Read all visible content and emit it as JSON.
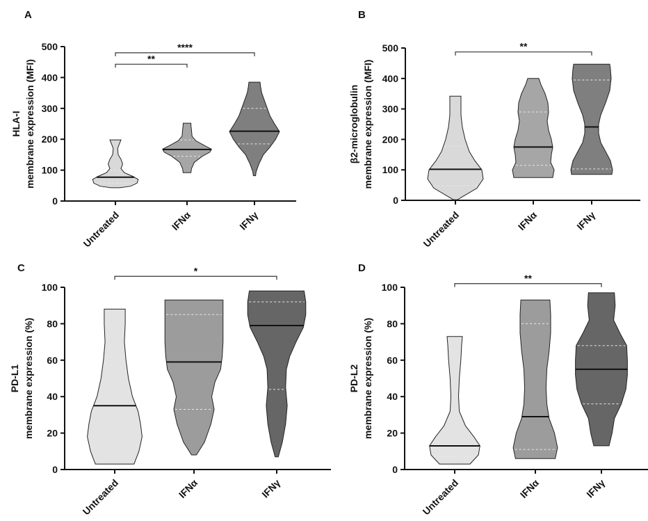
{
  "chart_data": [
    {
      "type": "violin",
      "panel": "A",
      "ylabel_lines": [
        "HLA-I",
        "membrane expression (MFI)"
      ],
      "ylim": [
        0,
        500
      ],
      "yticks": [
        0,
        100,
        200,
        300,
        400,
        500
      ],
      "categories": [
        "Untreated",
        "IFNα",
        "IFNγ"
      ],
      "colors": [
        "#d9d9d9",
        "#a6a6a6",
        "#7f7f7f"
      ],
      "groups": [
        {
          "name": "Untreated",
          "min": 43,
          "max": 198,
          "median": 77,
          "q1": 58,
          "q3": 100,
          "profile": [
            [
              43,
              0.16
            ],
            [
              48,
              0.55
            ],
            [
              58,
              0.78
            ],
            [
              70,
              0.82
            ],
            [
              80,
              0.62
            ],
            [
              92,
              0.32
            ],
            [
              105,
              0.2
            ],
            [
              120,
              0.26
            ],
            [
              135,
              0.2
            ],
            [
              150,
              0.1
            ],
            [
              170,
              0.08
            ],
            [
              185,
              0.14
            ],
            [
              198,
              0.2
            ]
          ]
        },
        {
          "name": "IFNα",
          "min": 92,
          "max": 252,
          "median": 167,
          "q1": 145,
          "q3": 198,
          "profile": [
            [
              92,
              0.14
            ],
            [
              105,
              0.16
            ],
            [
              125,
              0.26
            ],
            [
              145,
              0.55
            ],
            [
              158,
              0.82
            ],
            [
              168,
              0.88
            ],
            [
              180,
              0.62
            ],
            [
              195,
              0.32
            ],
            [
              210,
              0.18
            ],
            [
              230,
              0.16
            ],
            [
              245,
              0.14
            ],
            [
              252,
              0.14
            ]
          ]
        },
        {
          "name": "IFNγ",
          "min": 82,
          "max": 385,
          "median": 226,
          "q1": 185,
          "q3": 300,
          "profile": [
            [
              82,
              0.04
            ],
            [
              95,
              0.06
            ],
            [
              120,
              0.16
            ],
            [
              150,
              0.32
            ],
            [
              175,
              0.56
            ],
            [
              200,
              0.76
            ],
            [
              225,
              0.9
            ],
            [
              250,
              0.72
            ],
            [
              275,
              0.56
            ],
            [
              300,
              0.46
            ],
            [
              325,
              0.36
            ],
            [
              350,
              0.26
            ],
            [
              370,
              0.22
            ],
            [
              385,
              0.2
            ]
          ]
        }
      ],
      "significance": [
        {
          "from": "Untreated",
          "to": "IFNα",
          "label": "**",
          "y": 443
        },
        {
          "from": "Untreated",
          "to": "IFNγ",
          "label": "****",
          "y": 480
        }
      ]
    },
    {
      "type": "violin",
      "panel": "B",
      "ylabel_lines": [
        "β2-microglobulin",
        "membrane expression (MFI)"
      ],
      "ylim": [
        0,
        500
      ],
      "yticks": [
        0,
        100,
        200,
        300,
        400,
        500
      ],
      "categories": [
        "Untreated",
        "IFNα",
        "IFNγ"
      ],
      "colors": [
        "#d9d9d9",
        "#a6a6a6",
        "#7f7f7f"
      ],
      "groups": [
        {
          "name": "Untreated",
          "min": 2,
          "max": 342,
          "median": 102,
          "q1": 48,
          "q3": 178,
          "profile": [
            [
              2,
              0.06
            ],
            [
              15,
              0.25
            ],
            [
              40,
              0.62
            ],
            [
              70,
              0.8
            ],
            [
              100,
              0.76
            ],
            [
              130,
              0.56
            ],
            [
              160,
              0.4
            ],
            [
              200,
              0.28
            ],
            [
              240,
              0.2
            ],
            [
              280,
              0.16
            ],
            [
              320,
              0.16
            ],
            [
              342,
              0.16
            ]
          ]
        },
        {
          "name": "IFNα",
          "min": 75,
          "max": 400,
          "median": 175,
          "q1": 115,
          "q3": 290,
          "profile": [
            [
              75,
              0.56
            ],
            [
              100,
              0.6
            ],
            [
              125,
              0.5
            ],
            [
              150,
              0.52
            ],
            [
              175,
              0.56
            ],
            [
              200,
              0.52
            ],
            [
              230,
              0.44
            ],
            [
              260,
              0.4
            ],
            [
              290,
              0.44
            ],
            [
              320,
              0.42
            ],
            [
              350,
              0.34
            ],
            [
              380,
              0.22
            ],
            [
              400,
              0.16
            ]
          ]
        },
        {
          "name": "IFNγ",
          "min": 85,
          "max": 447,
          "median": 241,
          "q1": 103,
          "q3": 395,
          "profile": [
            [
              85,
              0.58
            ],
            [
              100,
              0.6
            ],
            [
              130,
              0.54
            ],
            [
              160,
              0.4
            ],
            [
              190,
              0.26
            ],
            [
              220,
              0.2
            ],
            [
              250,
              0.2
            ],
            [
              280,
              0.26
            ],
            [
              320,
              0.4
            ],
            [
              360,
              0.52
            ],
            [
              400,
              0.56
            ],
            [
              430,
              0.54
            ],
            [
              447,
              0.52
            ]
          ]
        }
      ],
      "significance": [
        {
          "from": "Untreated",
          "to": "IFNγ",
          "label": "**",
          "y": 487
        }
      ]
    },
    {
      "type": "violin",
      "panel": "C",
      "ylabel_lines": [
        "PD-L1",
        "membrane expression (%)"
      ],
      "ylim": [
        0,
        100
      ],
      "yticks": [
        0,
        20,
        40,
        60,
        80,
        100
      ],
      "categories": [
        "Untreated",
        "IFNα",
        "IFNγ"
      ],
      "colors": [
        "#e3e3e3",
        "#9c9c9c",
        "#666666"
      ],
      "groups": [
        {
          "name": "Untreated",
          "min": 3,
          "max": 88,
          "median": 35,
          "q1": 12,
          "q3": 62,
          "profile": [
            [
              3,
              0.48
            ],
            [
              10,
              0.6
            ],
            [
              18,
              0.68
            ],
            [
              25,
              0.64
            ],
            [
              32,
              0.58
            ],
            [
              40,
              0.44
            ],
            [
              50,
              0.34
            ],
            [
              60,
              0.28
            ],
            [
              70,
              0.24
            ],
            [
              80,
              0.26
            ],
            [
              88,
              0.26
            ]
          ]
        },
        {
          "name": "IFNα",
          "min": 8,
          "max": 93,
          "median": 59,
          "q1": 33,
          "q3": 85,
          "profile": [
            [
              8,
              0.06
            ],
            [
              15,
              0.26
            ],
            [
              25,
              0.42
            ],
            [
              33,
              0.5
            ],
            [
              40,
              0.44
            ],
            [
              48,
              0.52
            ],
            [
              55,
              0.66
            ],
            [
              62,
              0.7
            ],
            [
              70,
              0.72
            ],
            [
              80,
              0.72
            ],
            [
              88,
              0.72
            ],
            [
              93,
              0.72
            ]
          ]
        },
        {
          "name": "IFNγ",
          "min": 7,
          "max": 98,
          "median": 79,
          "q1": 44,
          "q3": 92,
          "profile": [
            [
              7,
              0.04
            ],
            [
              15,
              0.14
            ],
            [
              25,
              0.22
            ],
            [
              35,
              0.26
            ],
            [
              45,
              0.22
            ],
            [
              55,
              0.24
            ],
            [
              62,
              0.32
            ],
            [
              70,
              0.48
            ],
            [
              78,
              0.66
            ],
            [
              85,
              0.72
            ],
            [
              92,
              0.72
            ],
            [
              98,
              0.68
            ]
          ]
        }
      ],
      "significance": [
        {
          "from": "Untreated",
          "to": "IFNγ",
          "label": "*",
          "y": 106
        }
      ]
    },
    {
      "type": "violin",
      "panel": "D",
      "ylabel_lines": [
        "PD-L2",
        "membrane expression (%)"
      ],
      "ylim": [
        0,
        100
      ],
      "yticks": [
        0,
        20,
        40,
        60,
        80,
        100
      ],
      "categories": [
        "Untreated",
        "IFNα",
        "IFNγ"
      ],
      "colors": [
        "#e3e3e3",
        "#9c9c9c",
        "#666666"
      ],
      "groups": [
        {
          "name": "Untreated",
          "min": 3,
          "max": 73,
          "median": 13,
          "q1": 7,
          "q3": 28,
          "profile": [
            [
              3,
              0.4
            ],
            [
              8,
              0.62
            ],
            [
              13,
              0.66
            ],
            [
              18,
              0.5
            ],
            [
              24,
              0.28
            ],
            [
              32,
              0.12
            ],
            [
              40,
              0.1
            ],
            [
              50,
              0.12
            ],
            [
              60,
              0.16
            ],
            [
              68,
              0.18
            ],
            [
              73,
              0.2
            ]
          ]
        },
        {
          "name": "IFNα",
          "min": 6,
          "max": 93,
          "median": 29,
          "q1": 11,
          "q3": 80,
          "profile": [
            [
              6,
              0.52
            ],
            [
              12,
              0.58
            ],
            [
              20,
              0.5
            ],
            [
              28,
              0.36
            ],
            [
              36,
              0.3
            ],
            [
              45,
              0.28
            ],
            [
              55,
              0.3
            ],
            [
              65,
              0.36
            ],
            [
              75,
              0.4
            ],
            [
              85,
              0.4
            ],
            [
              93,
              0.38
            ]
          ]
        },
        {
          "name": "IFNγ",
          "min": 13,
          "max": 97,
          "median": 55,
          "q1": 36,
          "q3": 68,
          "profile": [
            [
              13,
              0.2
            ],
            [
              20,
              0.28
            ],
            [
              28,
              0.34
            ],
            [
              36,
              0.52
            ],
            [
              44,
              0.64
            ],
            [
              52,
              0.68
            ],
            [
              60,
              0.68
            ],
            [
              68,
              0.66
            ],
            [
              75,
              0.48
            ],
            [
              82,
              0.32
            ],
            [
              90,
              0.36
            ],
            [
              97,
              0.34
            ]
          ]
        }
      ],
      "significance": [
        {
          "from": "Untreated",
          "to": "IFNγ",
          "label": "**",
          "y": 102
        }
      ]
    }
  ]
}
